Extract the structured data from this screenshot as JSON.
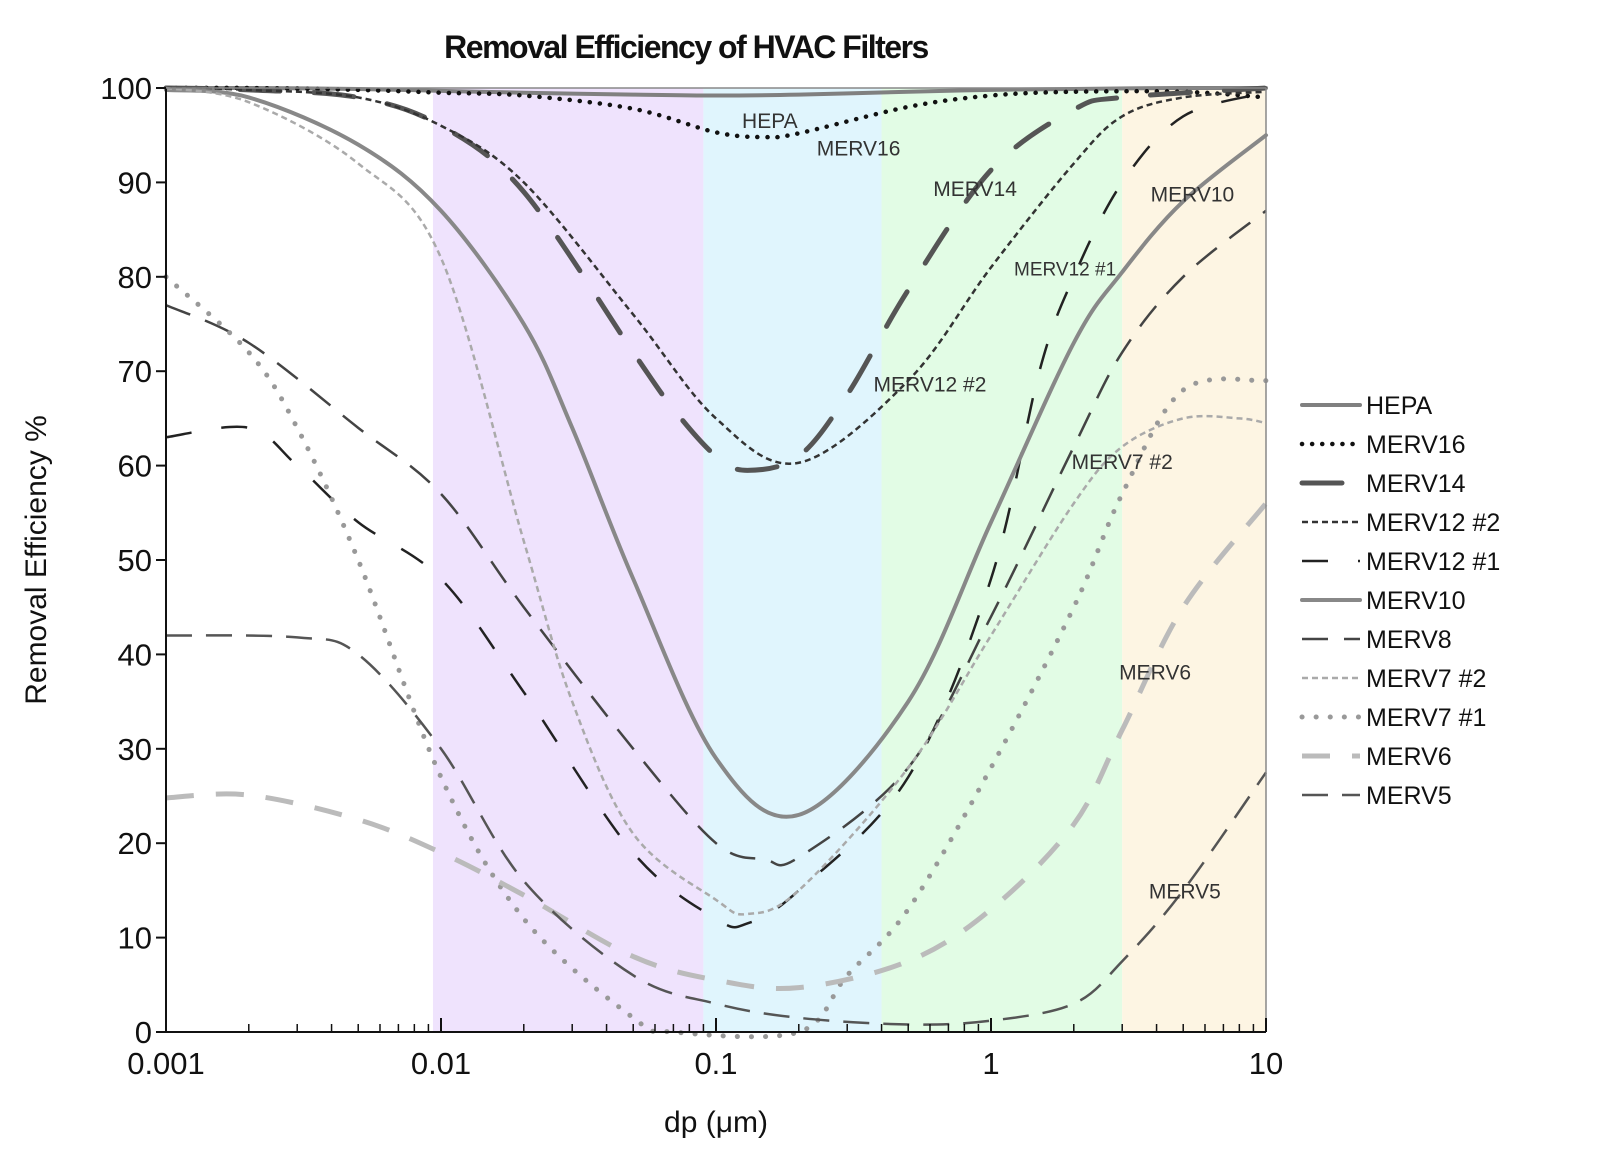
{
  "chart_data": {
    "type": "line",
    "title": "Removal Efficiency of HVAC Filters",
    "xlabel": "dp (μm)",
    "ylabel": "Removal Efficiency %",
    "xscale": "log",
    "xlim": [
      0.001,
      10
    ],
    "ylim": [
      0,
      100
    ],
    "xticks": [
      0.001,
      0.01,
      0.1,
      1,
      10
    ],
    "xtick_labels": [
      "0.001",
      "0.01",
      "0.1",
      "1",
      "10"
    ],
    "yticks": [
      0,
      10,
      20,
      30,
      40,
      50,
      60,
      70,
      80,
      90,
      100
    ],
    "ytick_labels": [
      "0",
      "10",
      "20",
      "30",
      "40",
      "50",
      "60",
      "70",
      "80",
      "90",
      "100"
    ],
    "grid": false,
    "legend_position": "right",
    "bands": [
      {
        "from": 0.00935,
        "to": 0.09,
        "color": "#efe3fd"
      },
      {
        "from": 0.09,
        "to": 0.4,
        "color": "#e0f5fd"
      },
      {
        "from": 0.4,
        "to": 3.0,
        "color": "#e2fce5"
      },
      {
        "from": 3.0,
        "to": 10,
        "color": "#fdf5e3"
      }
    ],
    "series": [
      {
        "name": "HEPA",
        "style": "solid",
        "color": "#808080",
        "x": [
          0.001,
          0.002,
          0.005,
          0.01,
          0.02,
          0.05,
          0.1,
          0.2,
          0.5,
          1,
          2,
          5,
          10
        ],
        "y": [
          100,
          100,
          99.9,
          99.7,
          99.5,
          99.3,
          99.2,
          99.3,
          99.6,
          99.8,
          99.9,
          100,
          100
        ]
      },
      {
        "name": "MERV16",
        "style": "dotted",
        "color": "#111111",
        "x": [
          0.001,
          0.002,
          0.005,
          0.01,
          0.02,
          0.05,
          0.1,
          0.15,
          0.2,
          0.5,
          1,
          2,
          5,
          10
        ],
        "y": [
          100,
          100,
          99.8,
          99.5,
          99.2,
          97.8,
          95.3,
          94.8,
          95.2,
          98,
          99.2,
          99.6,
          99.6,
          99
        ]
      },
      {
        "name": "MERV14",
        "style": "long-dash",
        "color": "#555555",
        "x": [
          0.001,
          0.002,
          0.005,
          0.01,
          0.02,
          0.05,
          0.07,
          0.1,
          0.13,
          0.2,
          0.3,
          0.5,
          1,
          2,
          3,
          10
        ],
        "y": [
          100,
          99.8,
          99,
          96,
          89,
          72,
          66,
          61,
          59.5,
          61,
          67.5,
          78.6,
          91.3,
          97.7,
          99,
          100
        ]
      },
      {
        "name": "MERV12 #2",
        "style": "short-dash",
        "color": "#333333",
        "x": [
          0.001,
          0.002,
          0.005,
          0.01,
          0.02,
          0.05,
          0.1,
          0.2,
          0.5,
          1,
          2,
          3,
          5,
          10
        ],
        "y": [
          100,
          99.8,
          99,
          96,
          90,
          76,
          65,
          60.3,
          69,
          81,
          92,
          97,
          99,
          99.6
        ]
      },
      {
        "name": "MERV12 #1",
        "style": "dash",
        "color": "#222222",
        "x": [
          0.001,
          0.002,
          0.003,
          0.005,
          0.01,
          0.02,
          0.05,
          0.1,
          0.13,
          0.2,
          0.5,
          1,
          1.5,
          2,
          3,
          5,
          10
        ],
        "y": [
          63,
          64,
          60,
          54,
          48,
          36,
          19,
          12,
          11.5,
          15,
          27,
          48,
          70,
          80,
          90,
          97,
          99.5
        ]
      },
      {
        "name": "MERV10",
        "style": "solid",
        "color": "#888888",
        "x": [
          0.001,
          0.002,
          0.005,
          0.01,
          0.02,
          0.03,
          0.05,
          0.1,
          0.2,
          0.5,
          1,
          2,
          3,
          5,
          10
        ],
        "y": [
          99.8,
          99,
          94,
          87,
          75,
          64,
          48,
          29,
          23,
          35,
          54,
          73,
          80.5,
          88,
          95
        ]
      },
      {
        "name": "MERV8",
        "style": "dash-dot",
        "color": "#444444",
        "x": [
          0.001,
          0.002,
          0.005,
          0.01,
          0.02,
          0.05,
          0.1,
          0.15,
          0.2,
          0.5,
          1,
          2,
          3,
          5,
          10
        ],
        "y": [
          77,
          73,
          64,
          57,
          45,
          30,
          20,
          18.3,
          18.5,
          28,
          44,
          62,
          72,
          80,
          87
        ]
      },
      {
        "name": "MERV7 #2",
        "style": "short-dash",
        "color": "#aaaaaa",
        "x": [
          0.001,
          0.002,
          0.005,
          0.01,
          0.02,
          0.03,
          0.05,
          0.1,
          0.13,
          0.2,
          0.5,
          1,
          2,
          3,
          5,
          8,
          10
        ],
        "y": [
          100,
          98.5,
          92,
          82,
          52,
          35,
          21,
          14,
          12.5,
          15,
          28,
          42,
          56,
          62,
          65,
          65,
          64.5
        ]
      },
      {
        "name": "MERV7 #1",
        "style": "dotted",
        "color": "#999999",
        "x": [
          0.001,
          0.002,
          0.003,
          0.005,
          0.01,
          0.02,
          0.05,
          0.07,
          0.2,
          0.3,
          0.5,
          1,
          2,
          3,
          5,
          10
        ],
        "y": [
          80,
          72,
          64,
          50,
          27,
          12,
          1.5,
          0,
          0,
          6,
          13,
          28,
          45,
          57,
          68,
          69
        ]
      },
      {
        "name": "MERV6",
        "style": "thick-dash",
        "color": "#bbbbbb",
        "x": [
          0.001,
          0.002,
          0.005,
          0.01,
          0.02,
          0.05,
          0.1,
          0.2,
          0.5,
          1,
          2,
          3,
          5,
          10
        ],
        "y": [
          24.8,
          25.1,
          22.5,
          19,
          14.5,
          8,
          5.5,
          4.7,
          7.5,
          13,
          22,
          32,
          45,
          56
        ]
      },
      {
        "name": "MERV5",
        "style": "dash",
        "color": "#555555",
        "x": [
          0.001,
          0.003,
          0.005,
          0.01,
          0.02,
          0.05,
          0.1,
          0.2,
          0.5,
          1,
          2,
          3,
          5,
          10
        ],
        "y": [
          42,
          41.8,
          40,
          30,
          16,
          6,
          3,
          1.5,
          0.8,
          1.2,
          3,
          7.5,
          15,
          27.5
        ]
      }
    ],
    "annotations": [
      {
        "text": "HEPA",
        "x": 0.157,
        "y": 96.6
      },
      {
        "text": "MERV16",
        "x": 0.33,
        "y": 93.7
      },
      {
        "text": "MERV14",
        "x": 0.875,
        "y": 89.4
      },
      {
        "text": "MERV12 #1",
        "x": 1.86,
        "y": 81
      },
      {
        "text": "MERV10",
        "x": 5.4,
        "y": 88.8
      },
      {
        "text": "MERV12 #2",
        "x": 0.6,
        "y": 68.7
      },
      {
        "text": "MERV7 #2",
        "x": 3.0,
        "y": 60.5
      },
      {
        "text": "MERV6",
        "x": 3.95,
        "y": 38.2
      },
      {
        "text": "MERV5",
        "x": 5.07,
        "y": 15
      }
    ]
  }
}
